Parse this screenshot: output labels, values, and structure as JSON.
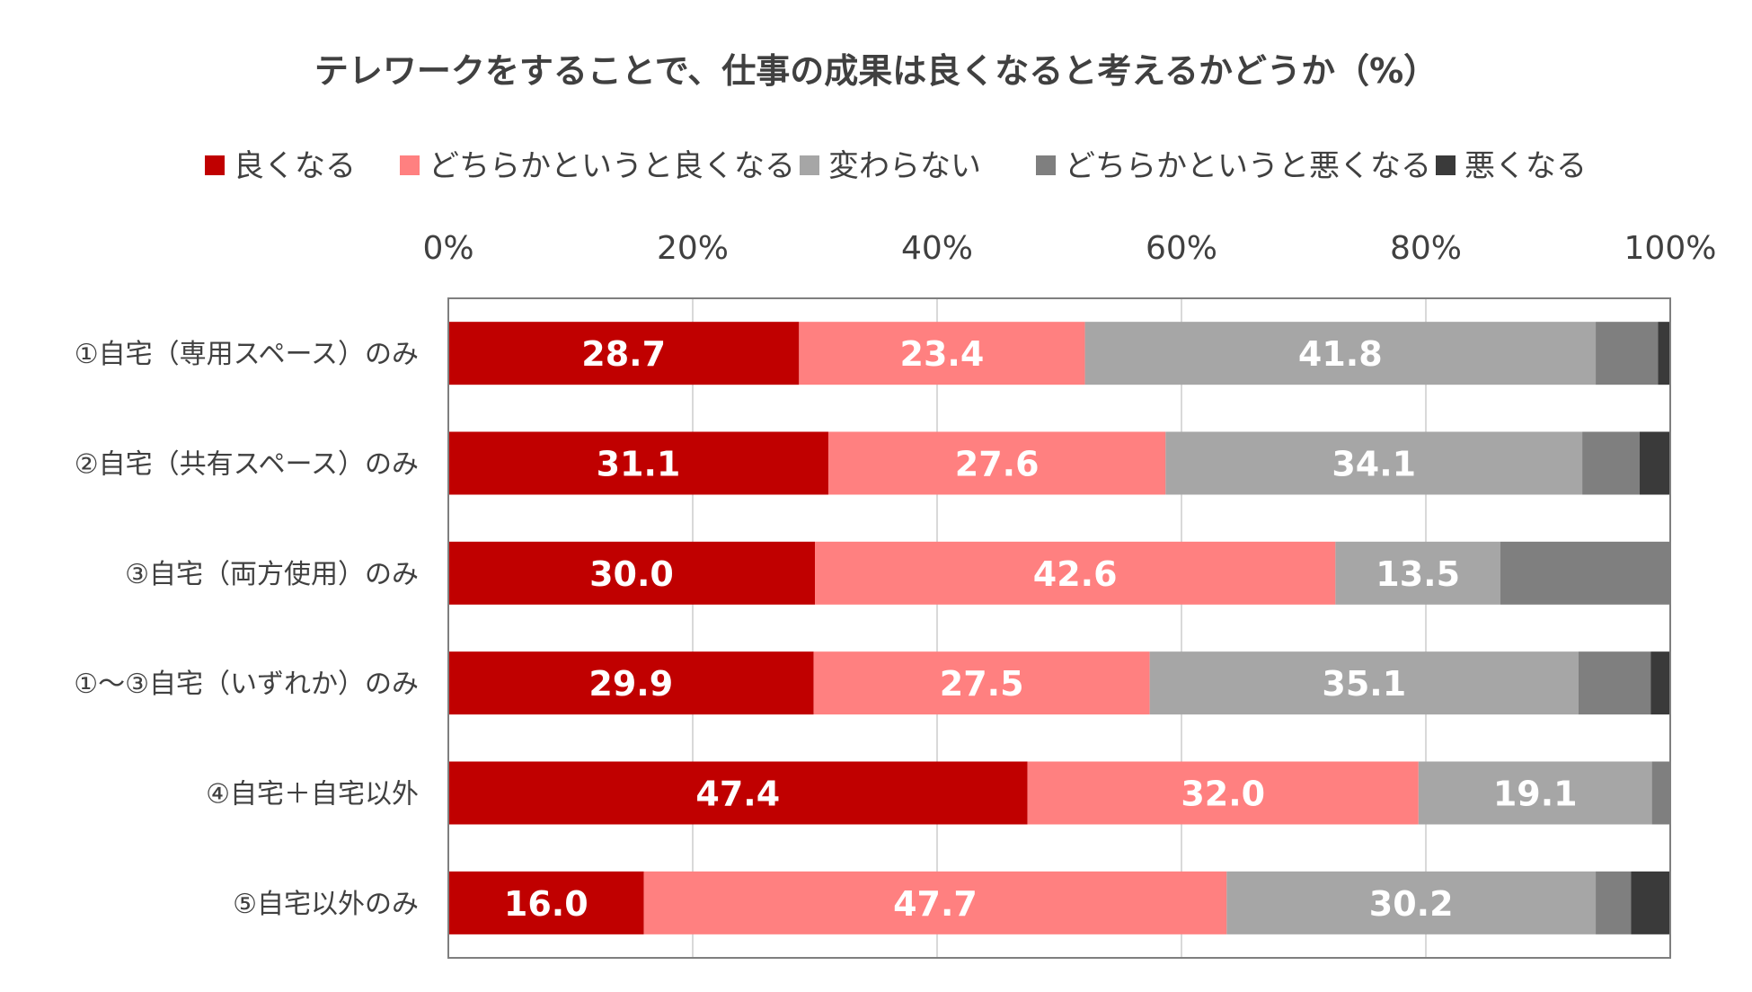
{
  "chart_data": {
    "type": "bar",
    "orientation": "horizontal",
    "stacked": true,
    "title": "テレワークをすることで、仕事の成果は良くなると考えるかどうか（%）",
    "xlim": [
      0,
      100
    ],
    "x_ticks": [
      "0%",
      "20%",
      "40%",
      "60%",
      "80%",
      "100%"
    ],
    "x_tick_values": [
      0,
      20,
      40,
      60,
      80,
      100
    ],
    "grid": true,
    "legend_position": "top",
    "categories": [
      "①自宅（専用スペース）のみ",
      "②自宅（共有スペース）のみ",
      "③自宅（両方使用）のみ",
      "①～③自宅（いずれか）のみ",
      "④自宅＋自宅以外",
      "⑤自宅以外のみ"
    ],
    "series": [
      {
        "name": "良くなる",
        "color": "#c00000",
        "values": [
          28.7,
          31.1,
          30.0,
          29.9,
          47.4,
          16.0
        ],
        "labels": [
          "28.7",
          "31.1",
          "30.0",
          "29.9",
          "47.4",
          "16.0"
        ]
      },
      {
        "name": "どちらかというと良くなる",
        "color": "#ff8080",
        "values": [
          23.4,
          27.6,
          42.6,
          27.5,
          32.0,
          47.7
        ],
        "labels": [
          "23.4",
          "27.6",
          "42.6",
          "27.5",
          "32.0",
          "47.7"
        ]
      },
      {
        "name": "変わらない",
        "color": "#a6a6a6",
        "values": [
          41.8,
          34.1,
          13.5,
          35.1,
          19.1,
          30.2
        ],
        "labels": [
          "41.8",
          "34.1",
          "13.5",
          "35.1",
          "19.1",
          "30.2"
        ]
      },
      {
        "name": "どちらかというと悪くなる",
        "color": "#7f7f7f",
        "values": [
          5.1,
          4.7,
          13.9,
          5.9,
          1.5,
          2.9
        ],
        "labels": []
      },
      {
        "name": "悪くなる",
        "color": "#3a3a3a",
        "values": [
          1.0,
          2.5,
          0.0,
          1.6,
          0.0,
          3.2
        ],
        "labels": []
      }
    ]
  }
}
